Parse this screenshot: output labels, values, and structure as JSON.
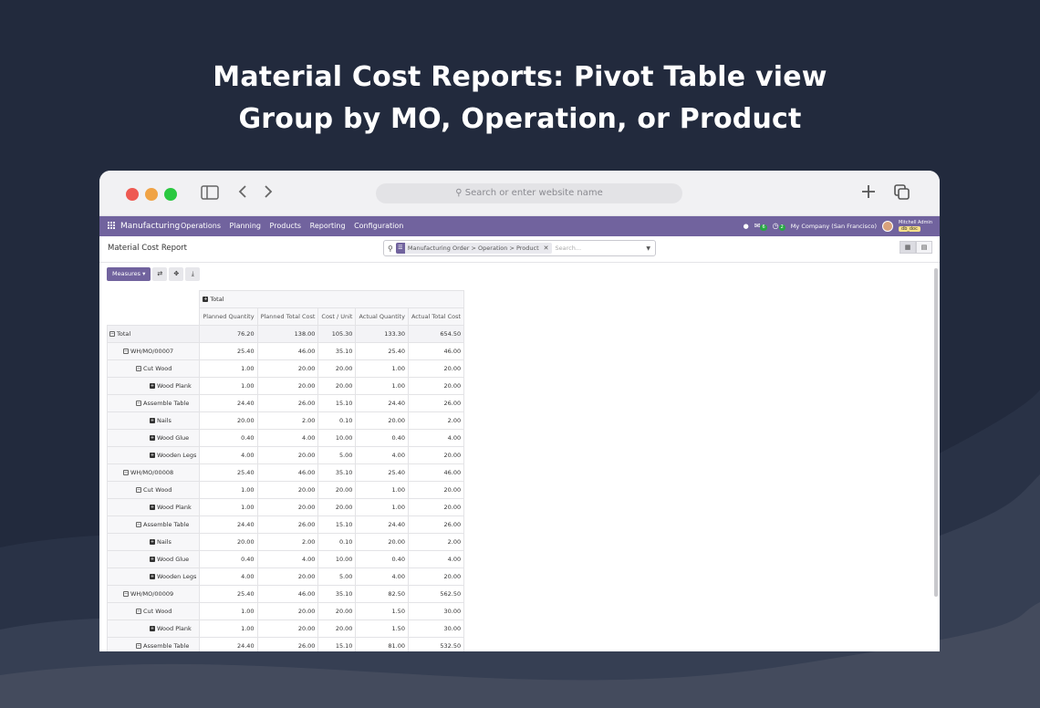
{
  "headline": {
    "line1": "Material Cost Reports: Pivot Table view",
    "line2": "Group by MO, Operation, or Product"
  },
  "browser": {
    "url_placeholder": "Search or enter website name"
  },
  "app": {
    "brand": "Manufacturing",
    "menu": [
      "Operations",
      "Planning",
      "Products",
      "Reporting",
      "Configuration"
    ],
    "messages_badge": "6",
    "activities_badge": "2",
    "company": "My Company (San Francisco)",
    "user_name": "Mitchell Admin",
    "db": "db_doc"
  },
  "control": {
    "breadcrumb": "Material Cost Report",
    "facet": "Manufacturing Order > Operation > Product",
    "search_placeholder": "Search..."
  },
  "toolbar": {
    "measures_label": "Measures"
  },
  "pivot": {
    "col_header": "Total",
    "measures": [
      "Planned Quantity",
      "Planned Total Cost",
      "Cost / Unit",
      "Actual Quantity",
      "Actual Total Cost"
    ],
    "rows": [
      {
        "label": "Total",
        "level": 0,
        "icon": "minus",
        "values": [
          "76.20",
          "138.00",
          "105.30",
          "133.30",
          "654.50"
        ]
      },
      {
        "label": "WH/MO/00007",
        "level": 1,
        "icon": "minus",
        "values": [
          "25.40",
          "46.00",
          "35.10",
          "25.40",
          "46.00"
        ]
      },
      {
        "label": "Cut Wood",
        "level": 2,
        "icon": "minus",
        "values": [
          "1.00",
          "20.00",
          "20.00",
          "1.00",
          "20.00"
        ]
      },
      {
        "label": "Wood Plank",
        "level": 3,
        "icon": "plus",
        "values": [
          "1.00",
          "20.00",
          "20.00",
          "1.00",
          "20.00"
        ]
      },
      {
        "label": "Assemble Table",
        "level": 2,
        "icon": "minus",
        "values": [
          "24.40",
          "26.00",
          "15.10",
          "24.40",
          "26.00"
        ]
      },
      {
        "label": "Nails",
        "level": 3,
        "icon": "plus",
        "values": [
          "20.00",
          "2.00",
          "0.10",
          "20.00",
          "2.00"
        ]
      },
      {
        "label": "Wood Glue",
        "level": 3,
        "icon": "plus",
        "values": [
          "0.40",
          "4.00",
          "10.00",
          "0.40",
          "4.00"
        ]
      },
      {
        "label": "Wooden Legs",
        "level": 3,
        "icon": "plus",
        "values": [
          "4.00",
          "20.00",
          "5.00",
          "4.00",
          "20.00"
        ]
      },
      {
        "label": "WH/MO/00008",
        "level": 1,
        "icon": "minus",
        "values": [
          "25.40",
          "46.00",
          "35.10",
          "25.40",
          "46.00"
        ]
      },
      {
        "label": "Cut Wood",
        "level": 2,
        "icon": "minus",
        "values": [
          "1.00",
          "20.00",
          "20.00",
          "1.00",
          "20.00"
        ]
      },
      {
        "label": "Wood Plank",
        "level": 3,
        "icon": "plus",
        "values": [
          "1.00",
          "20.00",
          "20.00",
          "1.00",
          "20.00"
        ]
      },
      {
        "label": "Assemble Table",
        "level": 2,
        "icon": "minus",
        "values": [
          "24.40",
          "26.00",
          "15.10",
          "24.40",
          "26.00"
        ]
      },
      {
        "label": "Nails",
        "level": 3,
        "icon": "plus",
        "values": [
          "20.00",
          "2.00",
          "0.10",
          "20.00",
          "2.00"
        ]
      },
      {
        "label": "Wood Glue",
        "level": 3,
        "icon": "plus",
        "values": [
          "0.40",
          "4.00",
          "10.00",
          "0.40",
          "4.00"
        ]
      },
      {
        "label": "Wooden Legs",
        "level": 3,
        "icon": "plus",
        "values": [
          "4.00",
          "20.00",
          "5.00",
          "4.00",
          "20.00"
        ]
      },
      {
        "label": "WH/MO/00009",
        "level": 1,
        "icon": "minus",
        "values": [
          "25.40",
          "46.00",
          "35.10",
          "82.50",
          "562.50"
        ]
      },
      {
        "label": "Cut Wood",
        "level": 2,
        "icon": "minus",
        "values": [
          "1.00",
          "20.00",
          "20.00",
          "1.50",
          "30.00"
        ]
      },
      {
        "label": "Wood Plank",
        "level": 3,
        "icon": "plus",
        "values": [
          "1.00",
          "20.00",
          "20.00",
          "1.50",
          "30.00"
        ]
      },
      {
        "label": "Assemble Table",
        "level": 2,
        "icon": "minus",
        "values": [
          "24.40",
          "26.00",
          "15.10",
          "81.00",
          "532.50"
        ]
      }
    ]
  },
  "colors": {
    "background": "#222a3d",
    "brand": "#71639e"
  }
}
